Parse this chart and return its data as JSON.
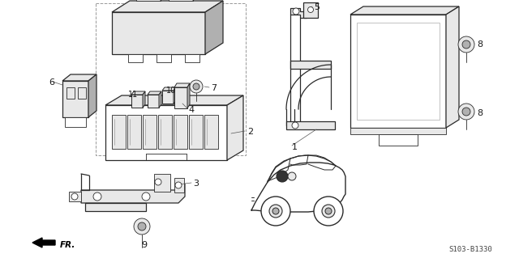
{
  "background_color": "#ffffff",
  "diagram_code": "S103-B1330",
  "fig_width": 6.4,
  "fig_height": 3.19,
  "dpi": 100,
  "line_color": "#2a2a2a",
  "text_color": "#1a1a1a",
  "gray_fill": "#d0d0d0",
  "light_gray": "#e8e8e8",
  "med_gray": "#b0b0b0"
}
